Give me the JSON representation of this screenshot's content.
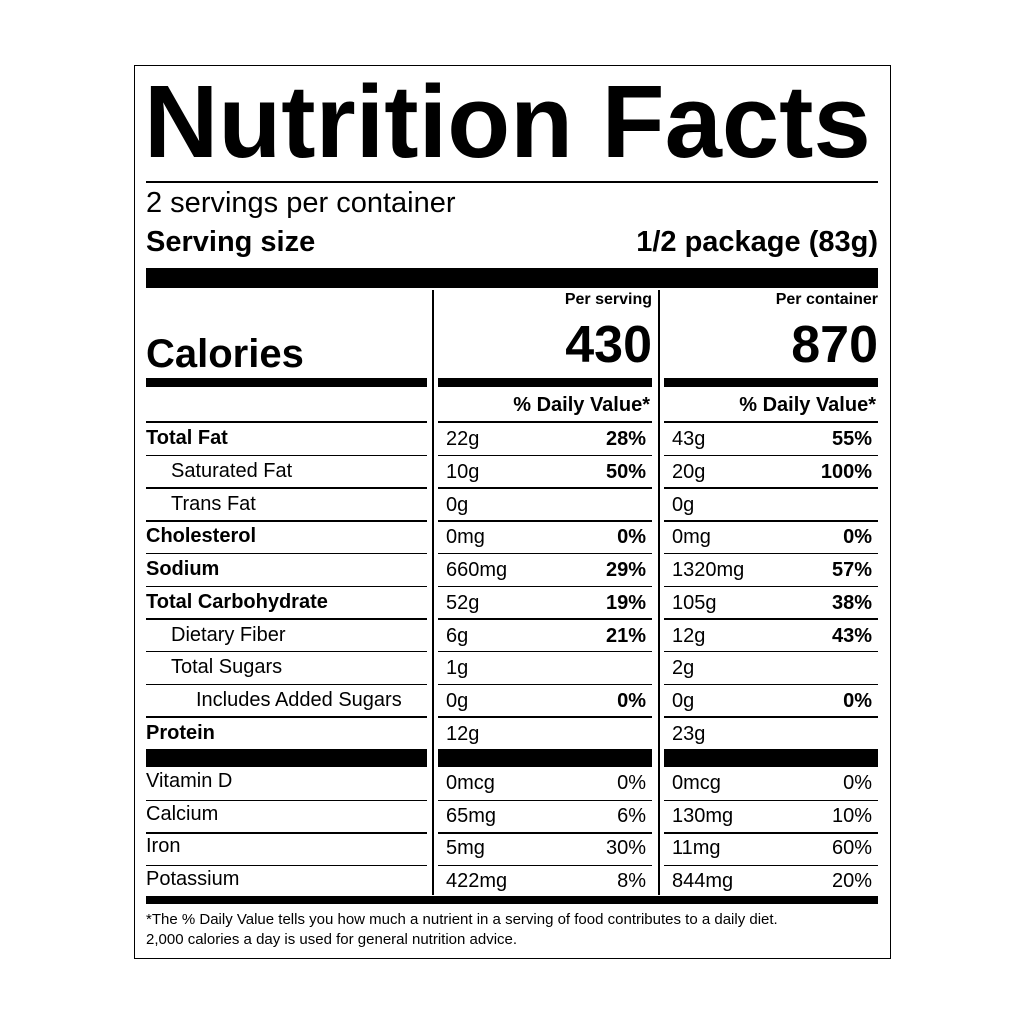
{
  "title": "Nutrition Facts",
  "servings": "2 servings per container",
  "serving_size": {
    "label": "Serving size",
    "value": "1/2 package (83g)"
  },
  "calories": {
    "label": "Calories",
    "columns": [
      {
        "header": "Per serving",
        "value": 430
      },
      {
        "header": "Per container",
        "value": 870
      }
    ]
  },
  "daily_value_header": [
    "% Daily Value*",
    "% Daily Value*"
  ],
  "nutrients": [
    {
      "name": "Total Fat",
      "bold": true,
      "indent": 0,
      "values": [
        [
          "22g",
          "28%"
        ],
        [
          "43g",
          "55%"
        ]
      ]
    },
    {
      "name": "Saturated Fat",
      "bold": false,
      "indent": 1,
      "values": [
        [
          "10g",
          "50%"
        ],
        [
          "20g",
          "100%"
        ]
      ]
    },
    {
      "name": "Trans Fat",
      "bold": false,
      "indent": 1,
      "values": [
        [
          "0g"
        ],
        [
          "0g"
        ]
      ]
    },
    {
      "name": "Cholesterol",
      "bold": true,
      "indent": 0,
      "values": [
        [
          "0mg",
          "0%"
        ],
        [
          "0mg",
          "0%"
        ]
      ]
    },
    {
      "name": "Sodium",
      "bold": true,
      "indent": 0,
      "values": [
        [
          "660mg",
          "29%"
        ],
        [
          "1320mg",
          "57%"
        ]
      ]
    },
    {
      "name": "Total Carbohydrate",
      "bold": true,
      "indent": 0,
      "values": [
        [
          "52g",
          "19%"
        ],
        [
          "105g",
          "38%"
        ]
      ]
    },
    {
      "name": "Dietary Fiber",
      "bold": false,
      "indent": 1,
      "values": [
        [
          "6g",
          "21%"
        ],
        [
          "12g",
          "43%"
        ]
      ]
    },
    {
      "name": "Total Sugars",
      "bold": false,
      "indent": 1,
      "values": [
        [
          "1g"
        ],
        [
          "2g"
        ]
      ]
    },
    {
      "name": "Includes Added Sugars",
      "bold": false,
      "indent": 2,
      "values": [
        [
          "0g",
          "0%"
        ],
        [
          "0g",
          "0%"
        ]
      ]
    },
    {
      "name": "Protein",
      "bold": true,
      "indent": 0,
      "values": [
        [
          "12g"
        ],
        [
          "23g"
        ]
      ]
    }
  ],
  "vitamins": [
    {
      "name": "Vitamin D",
      "values": [
        [
          "0mcg",
          "0%"
        ],
        [
          "0mcg",
          "0%"
        ]
      ]
    },
    {
      "name": "Calcium",
      "values": [
        [
          "65mg",
          "6%"
        ],
        [
          "130mg",
          "10%"
        ]
      ]
    },
    {
      "name": "Iron",
      "values": [
        [
          "5mg",
          "30%"
        ],
        [
          "11mg",
          "60%"
        ]
      ]
    },
    {
      "name": "Potassium",
      "values": [
        [
          "422mg",
          "8%"
        ],
        [
          "844mg",
          "20%"
        ]
      ]
    }
  ],
  "footnote": [
    "*The % Daily Value tells you how much a nutrient in a serving of food contributes to a daily diet.",
    "2,000 calories a day is used for general nutrition advice."
  ]
}
